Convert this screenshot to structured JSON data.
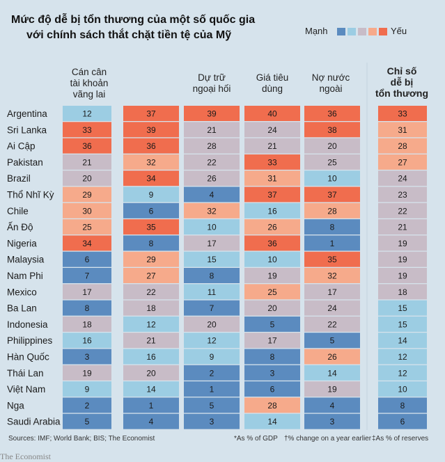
{
  "title": {
    "line1": "Mức độ dễ bị tổn thương của một số quốc gia",
    "line2": "với chính sách thắt chặt tiền tệ của Mỹ"
  },
  "legend": {
    "strong_label": "Mạnh",
    "weak_label": "Yếu",
    "colors": [
      "#5b8bbf",
      "#9ccde3",
      "#c8bcc7",
      "#f6aa8b",
      "#f06d4e"
    ]
  },
  "columns": [
    {
      "label_lines": [
        "Cán cân",
        "tài khoản",
        "vãng lai"
      ],
      "bold": false
    },
    {
      "label_lines": [],
      "bold": false
    },
    {
      "label_lines": [
        "Dự trữ",
        "ngoại hối"
      ],
      "bold": false
    },
    {
      "label_lines": [
        "Giá tiêu",
        "dùng"
      ],
      "bold": false
    },
    {
      "label_lines": [
        "Nợ nước",
        "ngoài"
      ],
      "bold": false
    },
    {
      "label_lines": [
        "Chỉ số",
        "dễ bị",
        "tổn thương"
      ],
      "bold": true
    }
  ],
  "chart_data": {
    "type": "table",
    "title": "Mức độ dễ bị tổn thương của một số quốc gia với chính sách thắt chặt tiền tệ của Mỹ",
    "countries": [
      "Argentina",
      "Sri Lanka",
      "Ai Cập",
      "Pakistan",
      "Brazil",
      "Thổ Nhĩ Kỳ",
      "Chile",
      "Ấn Độ",
      "Nigeria",
      "Malaysia",
      "Nam Phi",
      "Mexico",
      "Ba Lan",
      "Indonesia",
      "Philippines",
      "Hàn Quốc",
      "Thái Lan",
      "Việt Nam",
      "Nga",
      "Saudi Arabia"
    ],
    "values": [
      [
        12,
        37,
        39,
        40,
        36,
        33
      ],
      [
        33,
        39,
        21,
        24,
        38,
        31
      ],
      [
        36,
        36,
        28,
        21,
        20,
        28
      ],
      [
        21,
        32,
        22,
        33,
        25,
        27
      ],
      [
        20,
        34,
        26,
        31,
        10,
        24
      ],
      [
        29,
        9,
        4,
        37,
        37,
        23
      ],
      [
        30,
        6,
        32,
        16,
        28,
        22
      ],
      [
        25,
        35,
        10,
        26,
        8,
        21
      ],
      [
        34,
        8,
        17,
        36,
        1,
        19
      ],
      [
        6,
        29,
        15,
        10,
        35,
        19
      ],
      [
        7,
        27,
        8,
        19,
        32,
        19
      ],
      [
        17,
        22,
        11,
        25,
        17,
        18
      ],
      [
        8,
        18,
        7,
        20,
        24,
        15
      ],
      [
        18,
        12,
        20,
        5,
        22,
        15
      ],
      [
        16,
        21,
        12,
        17,
        5,
        14
      ],
      [
        3,
        16,
        9,
        8,
        26,
        12
      ],
      [
        19,
        20,
        2,
        3,
        14,
        12
      ],
      [
        9,
        14,
        1,
        6,
        19,
        10
      ],
      [
        2,
        1,
        5,
        28,
        4,
        8
      ],
      [
        5,
        4,
        3,
        14,
        3,
        6
      ]
    ],
    "colors": [
      [
        2,
        5,
        5,
        5,
        5,
        5
      ],
      [
        5,
        5,
        3,
        3,
        5,
        4
      ],
      [
        5,
        5,
        3,
        3,
        3,
        4
      ],
      [
        3,
        4,
        3,
        5,
        3,
        4
      ],
      [
        3,
        5,
        3,
        4,
        2,
        3
      ],
      [
        4,
        2,
        1,
        5,
        5,
        3
      ],
      [
        4,
        1,
        4,
        2,
        4,
        3
      ],
      [
        4,
        5,
        2,
        4,
        1,
        3
      ],
      [
        5,
        1,
        3,
        5,
        1,
        3
      ],
      [
        1,
        4,
        2,
        2,
        5,
        3
      ],
      [
        1,
        4,
        1,
        3,
        4,
        3
      ],
      [
        3,
        3,
        2,
        4,
        3,
        3
      ],
      [
        1,
        3,
        1,
        3,
        3,
        2
      ],
      [
        3,
        2,
        3,
        1,
        3,
        2
      ],
      [
        2,
        3,
        2,
        3,
        1,
        2
      ],
      [
        1,
        2,
        2,
        1,
        4,
        2
      ],
      [
        3,
        3,
        1,
        1,
        2,
        2
      ],
      [
        2,
        2,
        1,
        1,
        3,
        2
      ],
      [
        1,
        1,
        1,
        4,
        1,
        1
      ],
      [
        1,
        1,
        1,
        2,
        1,
        1
      ]
    ]
  },
  "footer": {
    "sources": "Sources: IMF; World Bank; BIS; The Economist",
    "note1": "*As % of GDP",
    "note2": "†% change on a year earlier",
    "note3": "‡As % of reserves"
  },
  "brand": "The Economist"
}
